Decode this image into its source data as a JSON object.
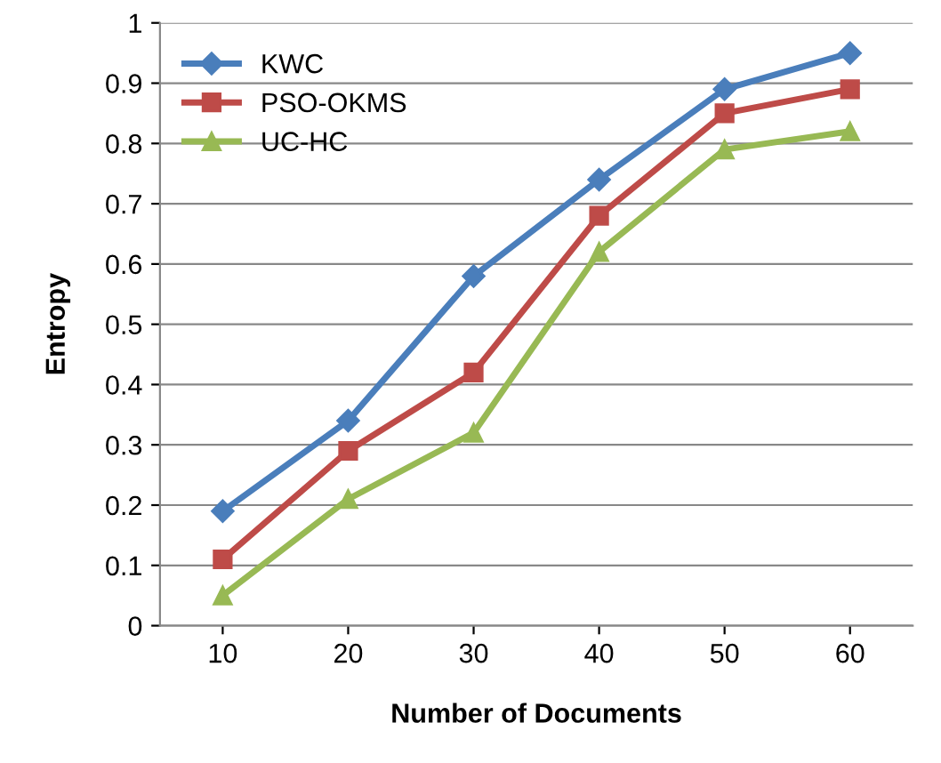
{
  "chart_data": {
    "type": "line",
    "xlabel": "Number of Documents",
    "ylabel": "Entropy",
    "categories": [
      "10",
      "20",
      "30",
      "40",
      "50",
      "60"
    ],
    "series": [
      {
        "name": "KWC",
        "color": "#4a7ebb",
        "marker": "diamond",
        "values": [
          0.19,
          0.34,
          0.58,
          0.74,
          0.89,
          0.95
        ]
      },
      {
        "name": "PSO-OKMS",
        "color": "#be4b48",
        "marker": "square",
        "values": [
          0.11,
          0.29,
          0.42,
          0.68,
          0.85,
          0.89
        ]
      },
      {
        "name": "UC-HC",
        "color": "#98b954",
        "marker": "triangle",
        "values": [
          0.05,
          0.21,
          0.32,
          0.62,
          0.79,
          0.82
        ]
      }
    ],
    "ylim": [
      0,
      1
    ],
    "yticks": [
      0,
      0.1,
      0.2,
      0.3,
      0.4,
      0.5,
      0.6,
      0.7,
      0.8,
      0.9,
      1
    ],
    "grid": "y",
    "legend": "top left",
    "line_style": "solid"
  }
}
